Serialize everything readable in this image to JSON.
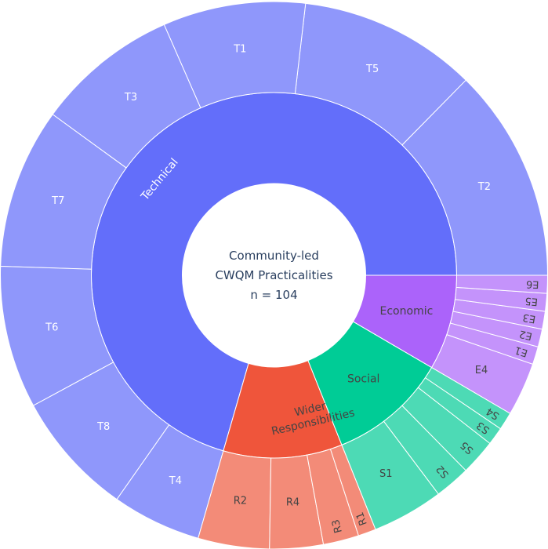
{
  "chart_data": {
    "type": "sunburst",
    "center": {
      "line1": "Community-led",
      "line2": "CWQM Practicalities",
      "line3": "n = 104"
    },
    "categories": [
      {
        "name": "Technical",
        "color": "#636efa",
        "child_color": "#8f97fb",
        "text_color": "#ffffff",
        "children": [
          {
            "name": "T2",
            "value": 12
          },
          {
            "name": "T5",
            "value": 10
          },
          {
            "name": "T1",
            "value": 8
          },
          {
            "name": "T3",
            "value": 8
          },
          {
            "name": "T7",
            "value": 9
          },
          {
            "name": "T6",
            "value": 8
          },
          {
            "name": "T8",
            "value": 7
          },
          {
            "name": "T4",
            "value": 5
          }
        ]
      },
      {
        "name": "Wider Responsibilities",
        "color": "#ef553b",
        "child_color": "#f38b78",
        "text_color": "#444444",
        "children": [
          {
            "name": "R2",
            "value": 4
          },
          {
            "name": "R4",
            "value": 3
          },
          {
            "name": "R3",
            "value": 2
          },
          {
            "name": "R1",
            "value": 1
          }
        ]
      },
      {
        "name": "Social",
        "color": "#00cc96",
        "child_color": "#4ddab5",
        "text_color": "#444444",
        "children": [
          {
            "name": "S1",
            "value": 4
          },
          {
            "name": "S2",
            "value": 2
          },
          {
            "name": "S5",
            "value": 2
          },
          {
            "name": "S3",
            "value": 1
          },
          {
            "name": "S4",
            "value": 1
          }
        ]
      },
      {
        "name": "Economic",
        "color": "#ab63fa",
        "child_color": "#c493fb",
        "text_color": "#444444",
        "children": [
          {
            "name": "E4",
            "value": 3
          },
          {
            "name": "E1",
            "value": 1
          },
          {
            "name": "E2",
            "value": 1
          },
          {
            "name": "E3",
            "value": 1
          },
          {
            "name": "E5",
            "value": 1
          },
          {
            "name": "E6",
            "value": 1
          }
        ]
      }
    ]
  }
}
